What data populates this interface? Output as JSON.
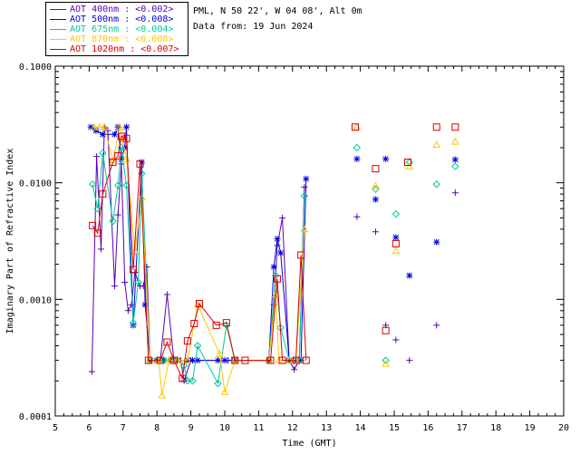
{
  "header": {
    "site_line": "PML, N 50 22', W 04 08', Alt 0m",
    "date_line": "Data from: 19 Jun 2024"
  },
  "chart_data": {
    "type": "line",
    "xlabel": "Time (GMT)",
    "ylabel": "Imaginary Part of Refractive Index",
    "xlim": [
      5,
      20
    ],
    "ylim": [
      0.0001,
      0.1
    ],
    "yscale": "log",
    "xticks": [
      "5",
      "6",
      "7",
      "8",
      "9",
      "10",
      "11",
      "12",
      "13",
      "14",
      "15",
      "16",
      "17",
      "18",
      "19",
      "20"
    ],
    "yticks": [
      {
        "value": 0.1,
        "label": "0.1000"
      },
      {
        "value": 0.01,
        "label": "0.0100"
      },
      {
        "value": 0.001,
        "label": "0.0010"
      },
      {
        "value": 0.0001,
        "label": "0.0001"
      }
    ],
    "series": [
      {
        "name": "AOT  400nm : <0.002>",
        "color": "#5a00b4",
        "marker": "plus",
        "points": [
          [
            6.08,
            0.00024
          ],
          [
            6.22,
            0.0168
          ],
          [
            6.35,
            0.0027
          ],
          [
            6.45,
            0.03
          ],
          [
            6.55,
            0.028
          ],
          [
            6.75,
            0.0013
          ],
          [
            6.85,
            0.0053
          ],
          [
            6.95,
            0.0145
          ],
          [
            7.05,
            0.0014
          ],
          [
            7.15,
            0.0008
          ],
          [
            7.25,
            0.0009
          ],
          [
            7.35,
            0.0017
          ],
          [
            7.5,
            0.0013
          ],
          [
            7.6,
            0.0013
          ],
          [
            7.7,
            0.0019
          ],
          [
            7.8,
            0.0003
          ],
          [
            8.0,
            0.0003
          ],
          [
            8.1,
            0.0003
          ],
          [
            8.3,
            0.0011
          ],
          [
            8.5,
            0.0003
          ],
          [
            8.7,
            0.0003
          ],
          [
            8.8,
            0.0002
          ],
          [
            9.0,
            0.0003
          ],
          [
            9.8,
            0.0003
          ],
          [
            10.1,
            0.0003
          ],
          [
            10.3,
            0.0003
          ],
          [
            11.3,
            0.0003
          ],
          [
            11.45,
            0.0009
          ],
          [
            11.55,
            0.0029
          ],
          [
            11.7,
            0.005
          ],
          [
            11.9,
            0.0003
          ],
          [
            12.05,
            0.00025
          ],
          [
            12.2,
            0.0003
          ],
          [
            12.35,
            0.0092
          ]
        ],
        "scatter": [
          [
            13.9,
            0.0051
          ],
          [
            14.45,
            0.0038
          ],
          [
            14.75,
            0.0006
          ],
          [
            15.05,
            0.00045
          ],
          [
            15.45,
            0.0003
          ],
          [
            16.25,
            0.0006
          ],
          [
            16.8,
            0.0082
          ]
        ]
      },
      {
        "name": "AOT  500nm : <0.008>",
        "color": "#0000e6",
        "marker": "star",
        "points": [
          [
            6.05,
            0.03
          ],
          [
            6.2,
            0.028
          ],
          [
            6.4,
            0.026
          ],
          [
            6.75,
            0.026
          ],
          [
            6.85,
            0.03
          ],
          [
            6.95,
            0.016
          ],
          [
            7.05,
            0.02
          ],
          [
            7.1,
            0.03
          ],
          [
            7.3,
            0.0006
          ],
          [
            7.55,
            0.015
          ],
          [
            7.65,
            0.0009
          ],
          [
            7.8,
            0.0003
          ],
          [
            8.0,
            0.0003
          ],
          [
            8.2,
            0.0003
          ],
          [
            8.4,
            0.0003
          ],
          [
            8.6,
            0.0003
          ],
          [
            8.9,
            0.0003
          ],
          [
            9.05,
            0.0003
          ],
          [
            9.2,
            0.0003
          ],
          [
            9.8,
            0.0003
          ],
          [
            10.0,
            0.0003
          ],
          [
            10.3,
            0.0003
          ],
          [
            11.3,
            0.0003
          ],
          [
            11.45,
            0.0019
          ],
          [
            11.55,
            0.0033
          ],
          [
            11.65,
            0.0025
          ],
          [
            11.9,
            0.0003
          ],
          [
            12.1,
            0.0003
          ],
          [
            12.25,
            0.0003
          ],
          [
            12.4,
            0.0108
          ]
        ],
        "scatter": [
          [
            13.9,
            0.016
          ],
          [
            14.45,
            0.0072
          ],
          [
            14.75,
            0.016
          ],
          [
            15.05,
            0.0034
          ],
          [
            15.45,
            0.0016
          ],
          [
            16.25,
            0.0031
          ],
          [
            16.8,
            0.0158
          ]
        ]
      },
      {
        "name": "AOT  675nm : <0.004>",
        "color": "#00c8a0",
        "marker": "diamond",
        "points": [
          [
            6.1,
            0.0097
          ],
          [
            6.25,
            0.006
          ],
          [
            6.4,
            0.018
          ],
          [
            6.7,
            0.0047
          ],
          [
            6.85,
            0.0095
          ],
          [
            6.95,
            0.02
          ],
          [
            7.1,
            0.0095
          ],
          [
            7.3,
            0.00063
          ],
          [
            7.45,
            0.0014
          ],
          [
            7.55,
            0.012
          ],
          [
            7.8,
            0.0003
          ],
          [
            8.0,
            0.0003
          ],
          [
            8.2,
            0.0003
          ],
          [
            8.4,
            0.0003
          ],
          [
            8.6,
            0.0003
          ],
          [
            8.8,
            0.00027
          ],
          [
            8.9,
            0.0002
          ],
          [
            9.05,
            0.0002
          ],
          [
            9.2,
            0.0004
          ],
          [
            9.8,
            0.00019
          ],
          [
            10.05,
            0.0006
          ],
          [
            10.3,
            0.0003
          ],
          [
            11.3,
            0.0003
          ],
          [
            11.5,
            0.0016
          ],
          [
            11.65,
            0.00057
          ],
          [
            11.9,
            0.0003
          ],
          [
            12.2,
            0.0003
          ],
          [
            12.35,
            0.0077
          ]
        ],
        "scatter": [
          [
            13.9,
            0.02
          ],
          [
            14.45,
            0.0088
          ],
          [
            14.75,
            0.0003
          ],
          [
            15.05,
            0.0054
          ],
          [
            15.45,
            0.015
          ],
          [
            16.25,
            0.0097
          ],
          [
            16.8,
            0.0138
          ]
        ]
      },
      {
        "name": "AOT  870nm : <0.008>",
        "color": "#ffc800",
        "marker": "triangle",
        "points": [
          [
            6.15,
            0.03
          ],
          [
            6.3,
            0.03
          ],
          [
            6.45,
            0.03
          ],
          [
            6.7,
            0.0155
          ],
          [
            6.9,
            0.03
          ],
          [
            7.1,
            0.016
          ],
          [
            7.35,
            0.0026
          ],
          [
            7.55,
            0.0075
          ],
          [
            7.8,
            0.0003
          ],
          [
            8.05,
            0.0003
          ],
          [
            8.15,
            0.00015
          ],
          [
            8.35,
            0.0003
          ],
          [
            8.6,
            0.0003
          ],
          [
            8.9,
            0.0003
          ],
          [
            9.2,
            0.0009
          ],
          [
            9.85,
            0.00034
          ],
          [
            10.0,
            0.00016
          ],
          [
            10.3,
            0.0003
          ],
          [
            11.3,
            0.0003
          ],
          [
            11.5,
            0.0011
          ],
          [
            11.6,
            0.0003
          ],
          [
            11.9,
            0.0003
          ],
          [
            12.1,
            0.0003
          ],
          [
            12.35,
            0.004
          ]
        ],
        "scatter": [
          [
            13.9,
            0.03
          ],
          [
            14.45,
            0.0094
          ],
          [
            14.75,
            0.00028
          ],
          [
            15.05,
            0.0026
          ],
          [
            15.45,
            0.0138
          ],
          [
            16.25,
            0.0212
          ],
          [
            16.8,
            0.0225
          ]
        ]
      },
      {
        "name": "AOT 1020nm : <0.007>",
        "color": "#dc0000",
        "marker": "square",
        "points": [
          [
            6.1,
            0.0043
          ],
          [
            6.25,
            0.0037
          ],
          [
            6.4,
            0.008
          ],
          [
            6.7,
            0.015
          ],
          [
            6.85,
            0.017
          ],
          [
            6.95,
            0.025
          ],
          [
            7.1,
            0.024
          ],
          [
            7.3,
            0.0018
          ],
          [
            7.5,
            0.0145
          ],
          [
            7.75,
            0.0003
          ],
          [
            8.1,
            0.0003
          ],
          [
            8.3,
            0.00043
          ],
          [
            8.5,
            0.0003
          ],
          [
            8.75,
            0.00021
          ],
          [
            8.9,
            0.00044
          ],
          [
            9.1,
            0.00062
          ],
          [
            9.25,
            0.00092
          ],
          [
            9.75,
            0.0006
          ],
          [
            10.05,
            0.00063
          ],
          [
            10.3,
            0.0003
          ],
          [
            10.6,
            0.0003
          ],
          [
            11.35,
            0.0003
          ],
          [
            11.55,
            0.0015
          ],
          [
            11.7,
            0.0003
          ],
          [
            12.1,
            0.0003
          ],
          [
            12.25,
            0.0024
          ],
          [
            12.4,
            0.0003
          ]
        ],
        "scatter": [
          [
            13.85,
            0.03
          ],
          [
            14.45,
            0.0132
          ],
          [
            14.75,
            0.00054
          ],
          [
            15.05,
            0.003
          ],
          [
            15.4,
            0.015
          ],
          [
            16.25,
            0.03
          ],
          [
            16.8,
            0.03
          ]
        ]
      }
    ]
  }
}
